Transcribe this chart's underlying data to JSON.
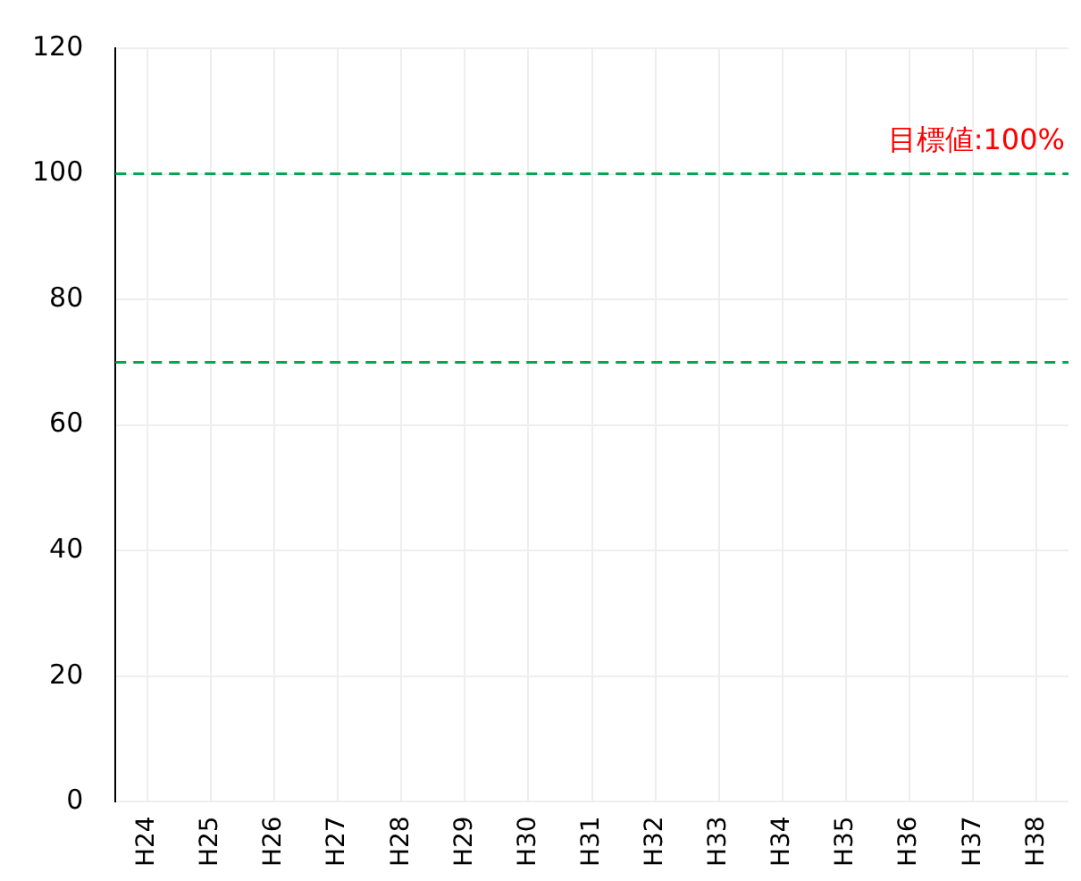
{
  "chart_data": {
    "type": "line",
    "categories": [
      "H24",
      "H25",
      "H26",
      "H27",
      "H28",
      "H29",
      "H30",
      "H31",
      "H32",
      "H33",
      "H34",
      "H35",
      "H36",
      "H37",
      "H38"
    ],
    "ylim": [
      0,
      120
    ],
    "yticks": [
      0,
      20,
      40,
      60,
      80,
      100,
      120
    ],
    "grid": true,
    "ref_lines": [
      {
        "axis": "y",
        "value": 100,
        "label": "目標値:100%",
        "color": "#00a651",
        "line_style": "dashed"
      },
      {
        "axis": "y",
        "value": 70,
        "color": "#00a651",
        "line_style": "dashed"
      }
    ]
  }
}
